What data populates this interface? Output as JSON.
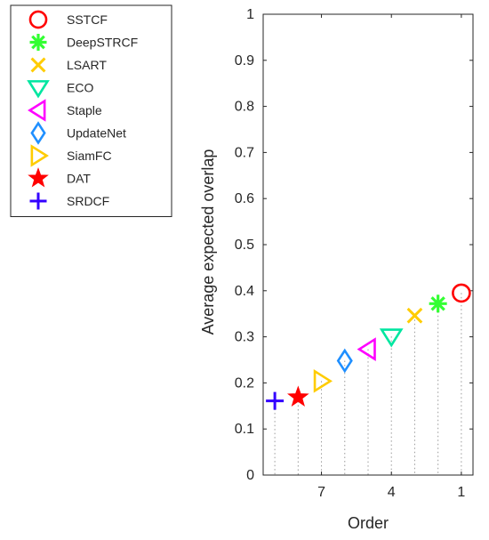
{
  "chart_data": {
    "type": "scatter",
    "xlabel": "Order",
    "ylabel": "Average expected overlap",
    "xlim": [
      0.5,
      9.5
    ],
    "x_direction": "reversed",
    "ylim": [
      0,
      1
    ],
    "x_ticks": [
      {
        "value": 7,
        "label": "7"
      },
      {
        "value": 4,
        "label": "4"
      },
      {
        "value": 1,
        "label": "1"
      }
    ],
    "y_ticks": [
      {
        "value": 0,
        "label": "0"
      },
      {
        "value": 0.1,
        "label": "0.1"
      },
      {
        "value": 0.2,
        "label": "0.2"
      },
      {
        "value": 0.3,
        "label": "0.3"
      },
      {
        "value": 0.4,
        "label": "0.4"
      },
      {
        "value": 0.5,
        "label": "0.5"
      },
      {
        "value": 0.6,
        "label": "0.6"
      },
      {
        "value": 0.7,
        "label": "0.7"
      },
      {
        "value": 0.8,
        "label": "0.8"
      },
      {
        "value": 0.9,
        "label": "0.9"
      },
      {
        "value": 1,
        "label": "1"
      }
    ],
    "grid": "vertical dotted drop lines from each point to the x-axis",
    "legend_position": "outside-left-top",
    "series": [
      {
        "name": "SSTCF",
        "x": 1,
        "y": 0.395,
        "marker": "circle",
        "color": "#ff0000"
      },
      {
        "name": "DeepSTRCF",
        "x": 2,
        "y": 0.372,
        "marker": "asterisk",
        "color": "#33ff33"
      },
      {
        "name": "LSART",
        "x": 3,
        "y": 0.346,
        "marker": "x",
        "color": "#ffcc00"
      },
      {
        "name": "ECO",
        "x": 4,
        "y": 0.301,
        "marker": "triangle-down",
        "color": "#00e6a0"
      },
      {
        "name": "Staple",
        "x": 5,
        "y": 0.273,
        "marker": "triangle-left",
        "color": "#ff00ff"
      },
      {
        "name": "UpdateNet",
        "x": 6,
        "y": 0.248,
        "marker": "diamond",
        "color": "#1f8fff"
      },
      {
        "name": "SiamFC",
        "x": 7,
        "y": 0.204,
        "marker": "triangle-right",
        "color": "#ffcc00"
      },
      {
        "name": "DAT",
        "x": 8,
        "y": 0.169,
        "marker": "star",
        "color": "#ff0000"
      },
      {
        "name": "SRDCF",
        "x": 9,
        "y": 0.161,
        "marker": "plus",
        "color": "#3300ff"
      }
    ]
  }
}
